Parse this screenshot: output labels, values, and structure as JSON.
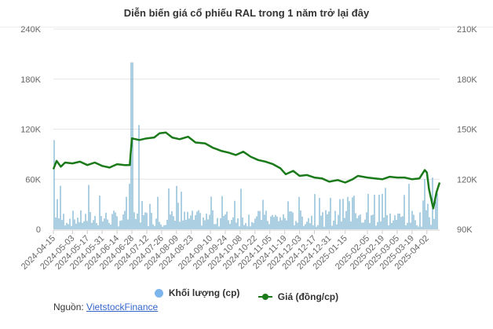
{
  "title": "Diễn biến giá cổ phiếu RAL trong 1 năm trở lại đây",
  "legend": {
    "volume_label": "Khối lượng (cp)",
    "price_label": "Giá (đồng/cp)"
  },
  "source": {
    "prefix": "Nguồn:",
    "link_text": "VietstockFinance"
  },
  "colors": {
    "volume": "#7cb5ec",
    "volume_bar": "#5a9fc4",
    "price": "#1a7a1a",
    "grid": "#e6e6e6",
    "axis_text": "#666666"
  },
  "chart_data": {
    "type": "bar+line",
    "title": "Diễn biến giá cổ phiếu RAL trong 1 năm trở lại đây",
    "left_axis": {
      "label": "Khối lượng (cp)",
      "ticks": [
        "0",
        "60K",
        "120K",
        "180K",
        "240K"
      ],
      "range": [
        0,
        240000
      ]
    },
    "right_axis": {
      "label": "Giá (đồng/cp)",
      "ticks": [
        "90K",
        "120K",
        "150K",
        "180K",
        "210K"
      ],
      "range": [
        90000,
        210000
      ]
    },
    "x_tick_labels": [
      "2024-04-15",
      "2024-05-03",
      "2024-05-17",
      "2024-05-31",
      "2024-06-14",
      "2024-06-28",
      "2024-07-12",
      "2024-07-26",
      "2024-08-09",
      "2024-08-23",
      "2024-09-10",
      "2024-09-24",
      "2024-10-08",
      "2024-10-22",
      "2024-11-05",
      "2024-11-19",
      "2024-12-03",
      "2024-12-17",
      "2024-12-31",
      "2025-01-15",
      "2025-02-05",
      "2025-02-19",
      "2025-03-05",
      "2025-03-19",
      "2025-04-02"
    ],
    "grid": true,
    "legend_position": "bottom",
    "series": [
      {
        "name": "Giá (đồng/cp)",
        "type": "line",
        "axis": "right",
        "points": [
          [
            "2024-04-15",
            126000
          ],
          [
            "2024-04-18",
            131000
          ],
          [
            "2024-04-22",
            127500
          ],
          [
            "2024-04-26",
            130000
          ],
          [
            "2024-05-03",
            129500
          ],
          [
            "2024-05-10",
            130500
          ],
          [
            "2024-05-17",
            128500
          ],
          [
            "2024-05-24",
            130000
          ],
          [
            "2024-05-31",
            128000
          ],
          [
            "2024-06-07",
            127000
          ],
          [
            "2024-06-14",
            129000
          ],
          [
            "2024-06-21",
            128500
          ],
          [
            "2024-06-26",
            128500
          ],
          [
            "2024-06-28",
            144500
          ],
          [
            "2024-07-05",
            143500
          ],
          [
            "2024-07-12",
            144500
          ],
          [
            "2024-07-19",
            145000
          ],
          [
            "2024-07-24",
            147500
          ],
          [
            "2024-07-30",
            148000
          ],
          [
            "2024-08-05",
            145000
          ],
          [
            "2024-08-12",
            144000
          ],
          [
            "2024-08-20",
            145500
          ],
          [
            "2024-08-27",
            142000
          ],
          [
            "2024-09-05",
            141500
          ],
          [
            "2024-09-12",
            139000
          ],
          [
            "2024-09-20",
            137000
          ],
          [
            "2024-09-27",
            136000
          ],
          [
            "2024-10-04",
            134500
          ],
          [
            "2024-10-11",
            136500
          ],
          [
            "2024-10-18",
            133500
          ],
          [
            "2024-10-25",
            131500
          ],
          [
            "2024-11-01",
            130500
          ],
          [
            "2024-11-08",
            129000
          ],
          [
            "2024-11-15",
            126500
          ],
          [
            "2024-11-20",
            123000
          ],
          [
            "2024-11-27",
            125000
          ],
          [
            "2024-12-03",
            122000
          ],
          [
            "2024-12-10",
            122500
          ],
          [
            "2024-12-17",
            121000
          ],
          [
            "2024-12-24",
            120500
          ],
          [
            "2024-12-31",
            118500
          ],
          [
            "2025-01-08",
            119500
          ],
          [
            "2025-01-15",
            118000
          ],
          [
            "2025-01-22",
            120000
          ],
          [
            "2025-01-27",
            122000
          ],
          [
            "2025-02-05",
            121000
          ],
          [
            "2025-02-12",
            120500
          ],
          [
            "2025-02-19",
            120000
          ],
          [
            "2025-02-26",
            121500
          ],
          [
            "2025-03-05",
            121000
          ],
          [
            "2025-03-12",
            121000
          ],
          [
            "2025-03-19",
            120000
          ],
          [
            "2025-03-26",
            120500
          ],
          [
            "2025-03-31",
            125500
          ],
          [
            "2025-04-02",
            124000
          ],
          [
            "2025-04-04",
            114000
          ],
          [
            "2025-04-08",
            102500
          ],
          [
            "2025-04-11",
            112000
          ],
          [
            "2025-04-14",
            118000
          ]
        ]
      },
      {
        "name": "Khối lượng (cp)",
        "type": "bar",
        "axis": "left",
        "notable_values": [
          [
            "2024-04-15",
            107000
          ],
          [
            "2024-06-27",
            200000
          ],
          [
            "2024-06-28",
            200000
          ],
          [
            "2024-07-05",
            125000
          ],
          [
            "2025-03-31",
            60000
          ],
          [
            "2025-04-07",
            62000
          ]
        ],
        "typical_range": [
          3000,
          55000
        ]
      }
    ]
  }
}
